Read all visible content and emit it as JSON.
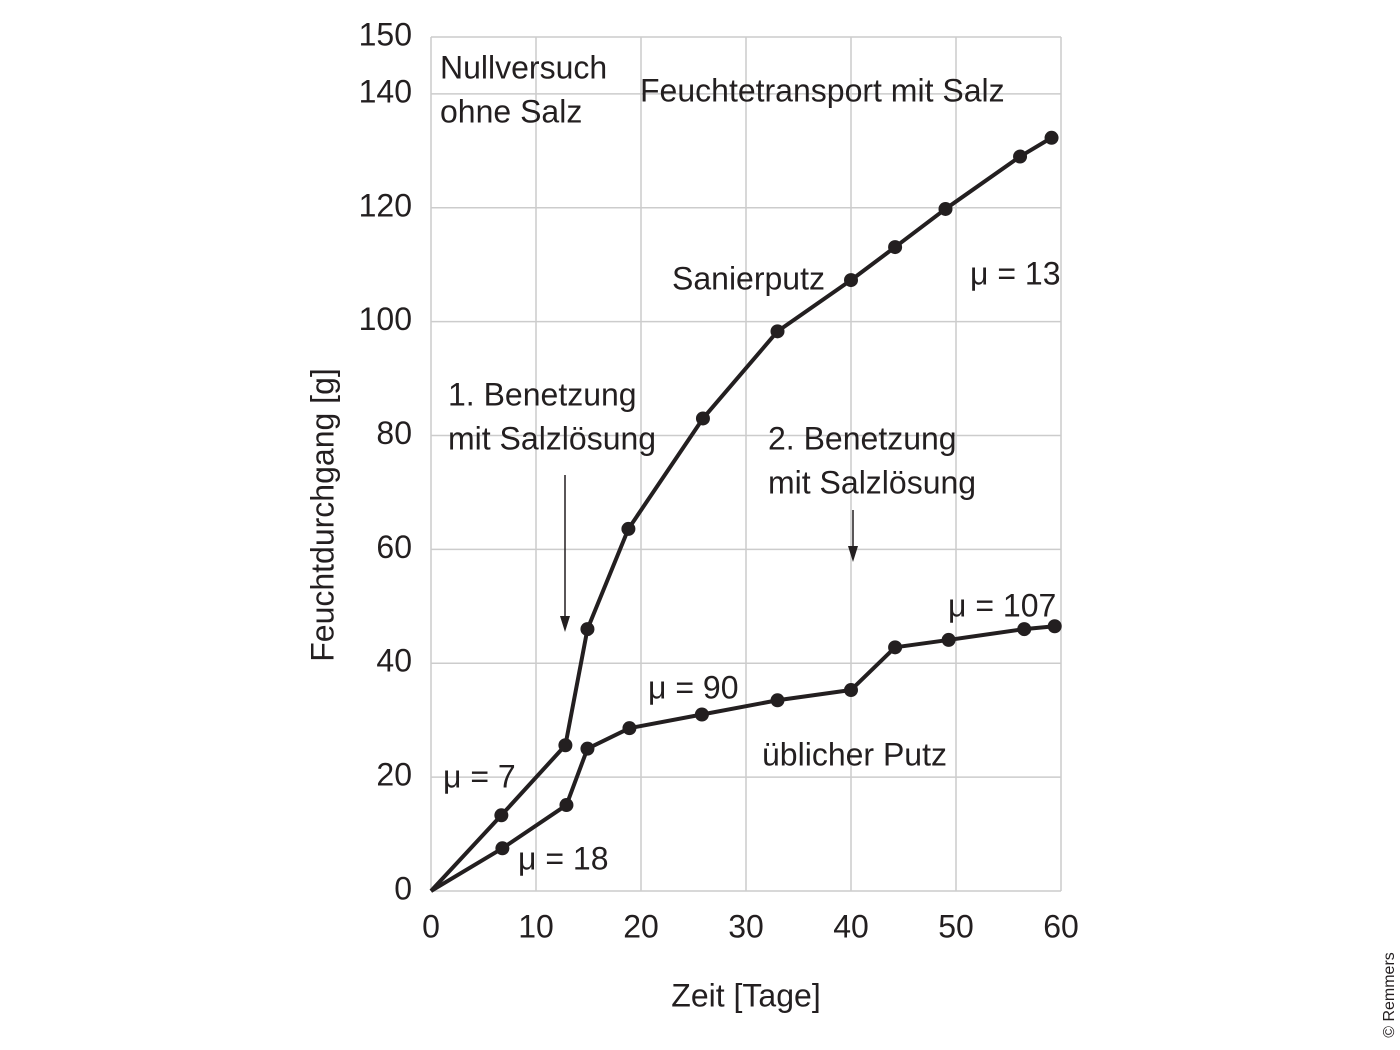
{
  "chart_data": {
    "type": "line",
    "x_label": "Zeit [Tage]",
    "y_label": "Feuchtdurchgang [g]",
    "xlim": [
      0,
      60
    ],
    "xticks": [
      0,
      10,
      20,
      30,
      40,
      50,
      60
    ],
    "ylim": [
      0,
      150
    ],
    "yticks": [
      0,
      20,
      40,
      60,
      80,
      100,
      120,
      140,
      150
    ],
    "grid": true,
    "series": [
      {
        "name": "Sanierputz",
        "color": "#231f20",
        "x": [
          0,
          6.7,
          12.8,
          14.9,
          18.8,
          25.9,
          33,
          40,
          44.2,
          49,
          56.1,
          59.1
        ],
        "values": [
          0,
          13.3,
          25.6,
          46,
          63.6,
          83,
          98.3,
          107.3,
          113.1,
          119.8,
          129,
          132.3
        ]
      },
      {
        "name": "üblicher Putz",
        "color": "#231f20",
        "x": [
          0,
          6.8,
          12.9,
          14.9,
          18.9,
          25.8,
          33,
          40,
          44.2,
          49.3,
          56.5,
          59.4
        ],
        "values": [
          0,
          7.5,
          15.1,
          25,
          28.6,
          31,
          33.5,
          35.3,
          42.8,
          44.1,
          46,
          46.5
        ]
      }
    ],
    "annotations": [
      [
        "Nullversuch",
        "ohne Salz"
      ],
      [
        "Feuchtetransport mit Salz"
      ],
      [
        "μ = 13"
      ],
      [
        "1. Benetzung",
        "mit Salzlösung"
      ],
      [
        "2. Benetzung",
        "mit Salzlösung"
      ],
      [
        "μ = 107"
      ],
      [
        "μ = 90"
      ],
      [
        "μ = 7"
      ],
      [
        "μ = 18"
      ]
    ],
    "credit": "© Remmers"
  }
}
